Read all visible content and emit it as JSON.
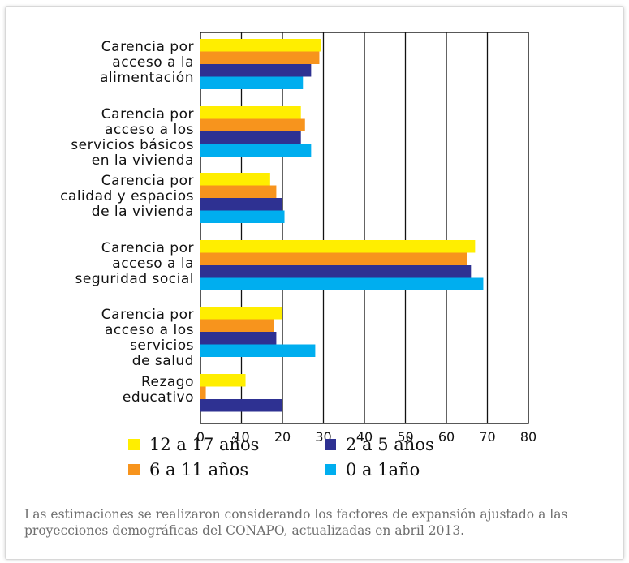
{
  "chart_data": {
    "type": "bar",
    "orientation": "horizontal",
    "categories": [
      "Carencia por\nacceso a la\nalimentación",
      "Carencia por\nacceso a los\nservicios básicos\nen la vivienda",
      "Carencia por\ncalidad y espacios\nde la vivienda",
      "Carencia por\nacceso a la\nseguridad social",
      "Carencia por\nacceso a los\nservicios\nde salud",
      "Rezago\neducativo"
    ],
    "series": [
      {
        "name": "12 a 17 años",
        "color": "#ffee00",
        "values": [
          29.5,
          24.5,
          17,
          67,
          20,
          11
        ]
      },
      {
        "name": "6 a 11 años",
        "color": "#f7941d",
        "values": [
          29,
          25.5,
          18.5,
          65,
          18,
          1.3
        ]
      },
      {
        "name": "2 a 5 años",
        "color": "#2e3192",
        "values": [
          27,
          24.5,
          20,
          66,
          18.5,
          20
        ]
      },
      {
        "name": "0 a 1año",
        "color": "#00aeef",
        "values": [
          25,
          27,
          20.5,
          69,
          28,
          0
        ]
      }
    ],
    "xlim": [
      0,
      80
    ],
    "xticks": [
      "0",
      "10",
      "20",
      "30",
      "40",
      "50",
      "60",
      "70",
      "80"
    ],
    "grid": "vertical",
    "legend_position": "bottom",
    "legend_order": [
      "12 a 17 años",
      "2 a 5 años",
      "6 a 11 años",
      "0 a 1año"
    ]
  },
  "footnote": "Las estimaciones se realizaron considerando los factores de expansión ajustado a las proyecciones demográficas del CONAPO, actualizadas en abril 2013."
}
